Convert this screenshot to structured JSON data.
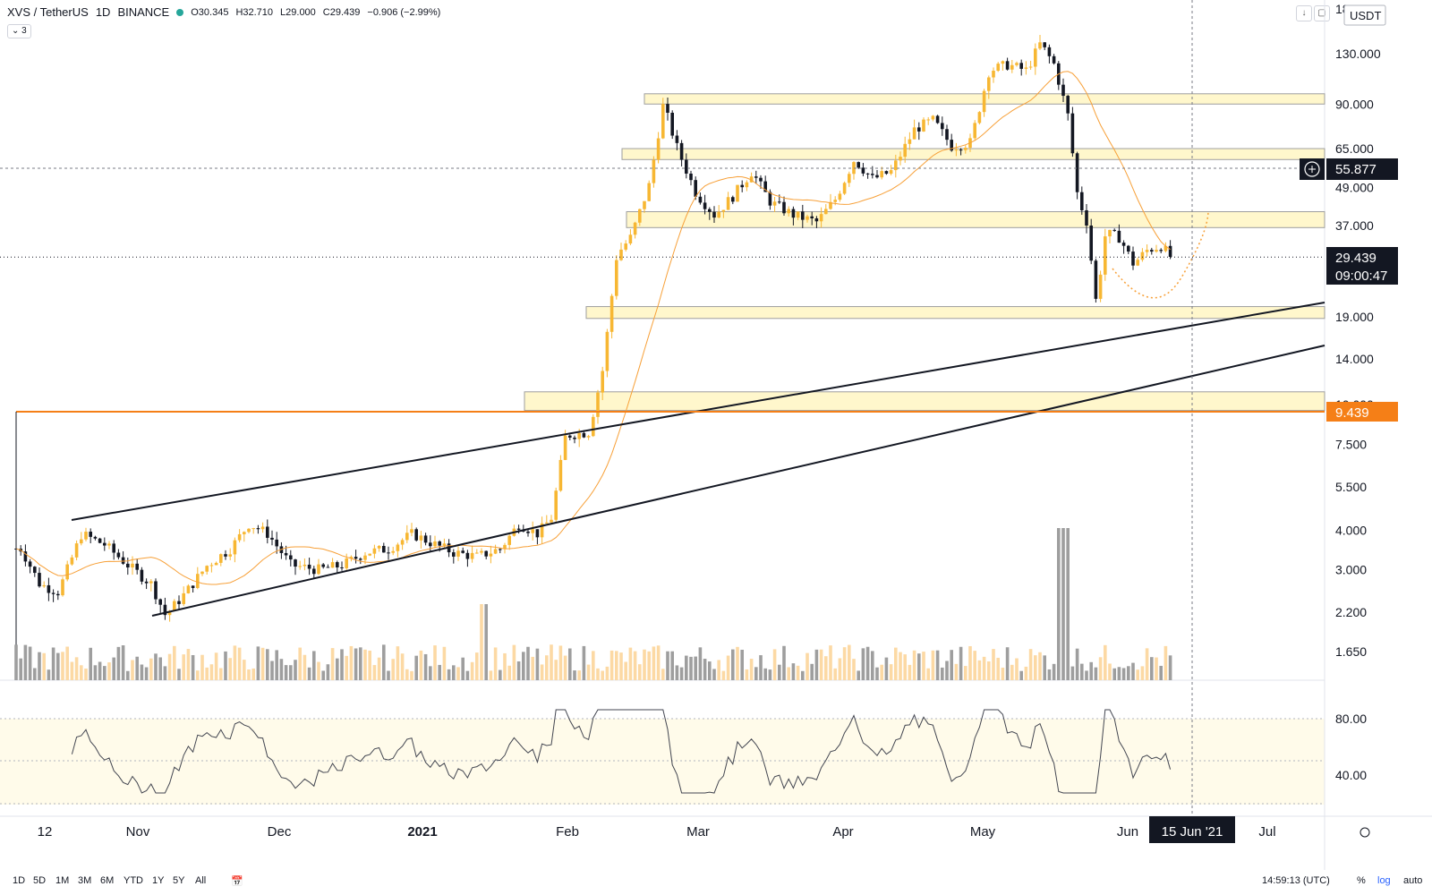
{
  "header": {
    "symbol": "XVS / TetherUS",
    "interval": "1D",
    "exchange": "BINANCE",
    "open": "O30.345",
    "high": "H32.710",
    "low": "L29.000",
    "close": "C29.439",
    "change": "−0.906 (−2.99%)",
    "indicator_count": "3",
    "currency": "USDT"
  },
  "colors": {
    "up": "#f7b733",
    "down": "#131722",
    "zone_fill": "#fff7cc",
    "ma": "#f7a038",
    "price_line_orange": "#f57f17",
    "rsi_band": "#fffbea"
  },
  "chart_data": {
    "type": "candlestick",
    "scale": "log",
    "y_ticks": [
      "130.000",
      "90.000",
      "65.000",
      "49.000",
      "37.000",
      "19.000",
      "14.000",
      "7.500",
      "5.500",
      "4.000",
      "3.000",
      "2.200",
      "1.650"
    ],
    "y_ticks_top_partial": [
      "180.000",
      "10.000"
    ],
    "x_ticks": [
      "12",
      "Nov",
      "Dec",
      "2021",
      "Feb",
      "Mar",
      "Apr",
      "May",
      "Jun",
      "Jul"
    ],
    "last_price": "29.439",
    "countdown": "09:00:47",
    "crosshair_price": "55.877",
    "horizontal_level": "9.439",
    "crosshair_date": "15 Jun '21",
    "resistance_zones": [
      {
        "low": 90,
        "high": 97
      },
      {
        "low": 60,
        "high": 65
      },
      {
        "low": 36.5,
        "high": 41
      },
      {
        "low": 18.8,
        "high": 20.5
      },
      {
        "low": 9.6,
        "high": 11.0
      }
    ],
    "rsi": {
      "levels": [
        "80.00",
        "40.00"
      ],
      "upper": 80,
      "lower": 30
    },
    "close_path": [
      [
        "2020-10-04",
        3.5
      ],
      [
        "2020-10-08",
        2.7
      ],
      [
        "2020-10-12",
        2.55
      ],
      [
        "2020-10-17",
        3.9
      ],
      [
        "2020-10-22",
        3.6
      ],
      [
        "2020-10-27",
        3.1
      ],
      [
        "2020-11-01",
        2.7
      ],
      [
        "2020-11-04",
        2.15
      ],
      [
        "2020-11-08",
        2.5
      ],
      [
        "2020-11-13",
        3.1
      ],
      [
        "2020-11-18",
        3.5
      ],
      [
        "2020-11-22",
        4.2
      ],
      [
        "2020-11-26",
        3.9
      ],
      [
        "2020-12-01",
        3.1
      ],
      [
        "2020-12-07",
        3.0
      ],
      [
        "2020-12-12",
        3.1
      ],
      [
        "2020-12-17",
        3.4
      ],
      [
        "2020-12-22",
        3.5
      ],
      [
        "2020-12-27",
        3.9
      ],
      [
        "2021-01-01",
        3.6
      ],
      [
        "2021-01-05",
        3.4
      ],
      [
        "2021-01-10",
        3.3
      ],
      [
        "2021-01-15",
        3.5
      ],
      [
        "2021-01-19",
        4.2
      ],
      [
        "2021-01-23",
        3.9
      ],
      [
        "2021-01-26",
        4.4
      ],
      [
        "2021-01-29",
        8.0
      ],
      [
        "2021-02-03",
        8.2
      ],
      [
        "2021-02-06",
        13
      ],
      [
        "2021-02-09",
        30
      ],
      [
        "2021-02-12",
        34
      ],
      [
        "2021-02-16",
        50
      ],
      [
        "2021-02-19",
        90
      ],
      [
        "2021-02-22",
        65
      ],
      [
        "2021-02-26",
        47
      ],
      [
        "2021-03-02",
        40
      ],
      [
        "2021-03-06",
        46
      ],
      [
        "2021-03-10",
        55
      ],
      [
        "2021-03-14",
        44
      ],
      [
        "2021-03-19",
        40
      ],
      [
        "2021-03-24",
        38
      ],
      [
        "2021-03-28",
        45
      ],
      [
        "2021-04-01",
        60
      ],
      [
        "2021-04-05",
        52
      ],
      [
        "2021-04-09",
        55
      ],
      [
        "2021-04-14",
        75
      ],
      [
        "2021-04-18",
        80
      ],
      [
        "2021-04-22",
        66
      ],
      [
        "2021-04-26",
        68
      ],
      [
        "2021-04-30",
        115
      ],
      [
        "2021-05-04",
        120
      ],
      [
        "2021-05-08",
        115
      ],
      [
        "2021-05-11",
        140
      ],
      [
        "2021-05-14",
        120
      ],
      [
        "2021-05-17",
        82
      ],
      [
        "2021-05-19",
        46
      ],
      [
        "2021-05-21",
        38
      ],
      [
        "2021-05-23",
        21
      ],
      [
        "2021-05-25",
        35
      ],
      [
        "2021-05-28",
        34
      ],
      [
        "2021-05-31",
        28
      ],
      [
        "2021-06-03",
        31
      ],
      [
        "2021-06-06",
        32
      ],
      [
        "2021-06-08",
        29.439
      ]
    ]
  },
  "bottom_bar": {
    "timeframes": [
      "1D",
      "5D",
      "1M",
      "3M",
      "6M",
      "YTD",
      "1Y",
      "5Y",
      "All"
    ],
    "clock": "14:59:13 (UTC)",
    "percent": "%",
    "log": "log",
    "auto": "auto"
  }
}
